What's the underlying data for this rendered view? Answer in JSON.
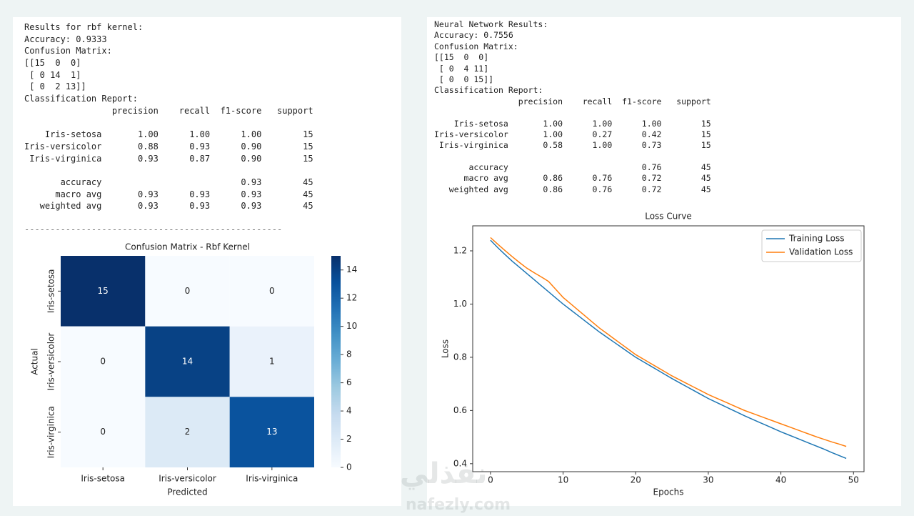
{
  "left_output": {
    "lines": [
      "Results for rbf kernel:",
      "Accuracy: 0.9333",
      "Confusion Matrix:",
      "[[15  0  0]",
      " [ 0 14  1]",
      " [ 0  2 13]]",
      "Classification Report:"
    ],
    "report": {
      "header": "                 precision    recall  f1-score   support",
      "rows": [
        "    Iris-setosa       1.00      1.00      1.00        15",
        "Iris-versicolor       0.88      0.93      0.90        15",
        " Iris-virginica       0.93      0.87      0.90        15"
      ],
      "summary": [
        "       accuracy                           0.93        45",
        "      macro avg       0.93      0.93      0.93        45",
        "   weighted avg       0.93      0.93      0.93        45"
      ]
    },
    "separator": "--------------------------------------------------"
  },
  "right_output": {
    "lines": [
      "Neural Network Results:",
      "Accuracy: 0.7556",
      "Confusion Matrix:",
      "[[15  0  0]",
      " [ 0  4 11]",
      " [ 0  0 15]]",
      "Classification Report:"
    ],
    "report": {
      "header": "                 precision    recall  f1-score   support",
      "rows": [
        "    Iris-setosa       1.00      1.00      1.00        15",
        "Iris-versicolor       1.00      0.27      0.42        15",
        " Iris-virginica       0.58      1.00      0.73        15"
      ],
      "summary": [
        "       accuracy                           0.76        45",
        "      macro avg       0.86      0.76      0.72        45",
        "   weighted avg       0.86      0.76      0.72        45"
      ]
    }
  },
  "watermark": {
    "arabic": "نفذلي",
    "latin": "nafezly.com"
  },
  "chart_data": [
    {
      "type": "heatmap",
      "title": "Confusion Matrix - Rbf Kernel",
      "x_label": "Predicted",
      "y_label": "Actual",
      "x_categories": [
        "Iris-setosa",
        "Iris-versicolor",
        "Iris-virginica"
      ],
      "y_categories": [
        "Iris-setosa",
        "Iris-versicolor",
        "Iris-virginica"
      ],
      "values": [
        [
          15,
          0,
          0
        ],
        [
          0,
          14,
          1
        ],
        [
          0,
          2,
          13
        ]
      ],
      "cmap": "Blues",
      "clim": [
        0,
        15
      ],
      "cticks": [
        0,
        2,
        4,
        6,
        8,
        10,
        12,
        14
      ]
    },
    {
      "type": "line",
      "title": "Loss Curve",
      "x_label": "Epochs",
      "y_label": "Loss",
      "x": [
        0,
        1,
        2,
        3,
        4,
        5,
        6,
        7,
        8,
        9,
        10,
        11,
        12,
        13,
        14,
        15,
        16,
        17,
        18,
        19,
        20,
        21,
        22,
        23,
        24,
        25,
        26,
        27,
        28,
        29,
        30,
        31,
        32,
        33,
        34,
        35,
        36,
        37,
        38,
        39,
        40,
        41,
        42,
        43,
        44,
        45,
        46,
        47,
        48,
        49
      ],
      "series": [
        {
          "name": "Training Loss",
          "color": "#1f77b4",
          "values": [
            1.24,
            1.212,
            1.186,
            1.161,
            1.138,
            1.115,
            1.092,
            1.069,
            1.046,
            1.023,
            1.0,
            0.979,
            0.958,
            0.937,
            0.916,
            0.895,
            0.876,
            0.857,
            0.838,
            0.819,
            0.8,
            0.784,
            0.768,
            0.752,
            0.736,
            0.72,
            0.705,
            0.69,
            0.675,
            0.66,
            0.645,
            0.632,
            0.619,
            0.606,
            0.593,
            0.58,
            0.568,
            0.556,
            0.544,
            0.532,
            0.52,
            0.509,
            0.498,
            0.487,
            0.476,
            0.465,
            0.454,
            0.442,
            0.431,
            0.42
          ]
        },
        {
          "name": "Validation Loss",
          "color": "#ff7f0e",
          "values": [
            1.25,
            1.225,
            1.201,
            1.178,
            1.156,
            1.135,
            1.118,
            1.102,
            1.085,
            1.055,
            1.025,
            1.002,
            0.979,
            0.956,
            0.933,
            0.91,
            0.89,
            0.87,
            0.85,
            0.83,
            0.81,
            0.794,
            0.778,
            0.762,
            0.746,
            0.73,
            0.716,
            0.702,
            0.688,
            0.674,
            0.66,
            0.648,
            0.636,
            0.624,
            0.612,
            0.6,
            0.59,
            0.58,
            0.57,
            0.56,
            0.55,
            0.54,
            0.53,
            0.52,
            0.51,
            0.5,
            0.491,
            0.482,
            0.474,
            0.465
          ]
        }
      ],
      "xlim": [
        -2.45,
        51.45
      ],
      "ylim": [
        0.37,
        1.294
      ],
      "xticks": [
        0,
        10,
        20,
        30,
        40,
        50
      ],
      "yticks": [
        0.4,
        0.6,
        0.8,
        {
          "value": 1,
          "label": "1.0"
        },
        1.2
      ],
      "legend": "upper right"
    }
  ]
}
